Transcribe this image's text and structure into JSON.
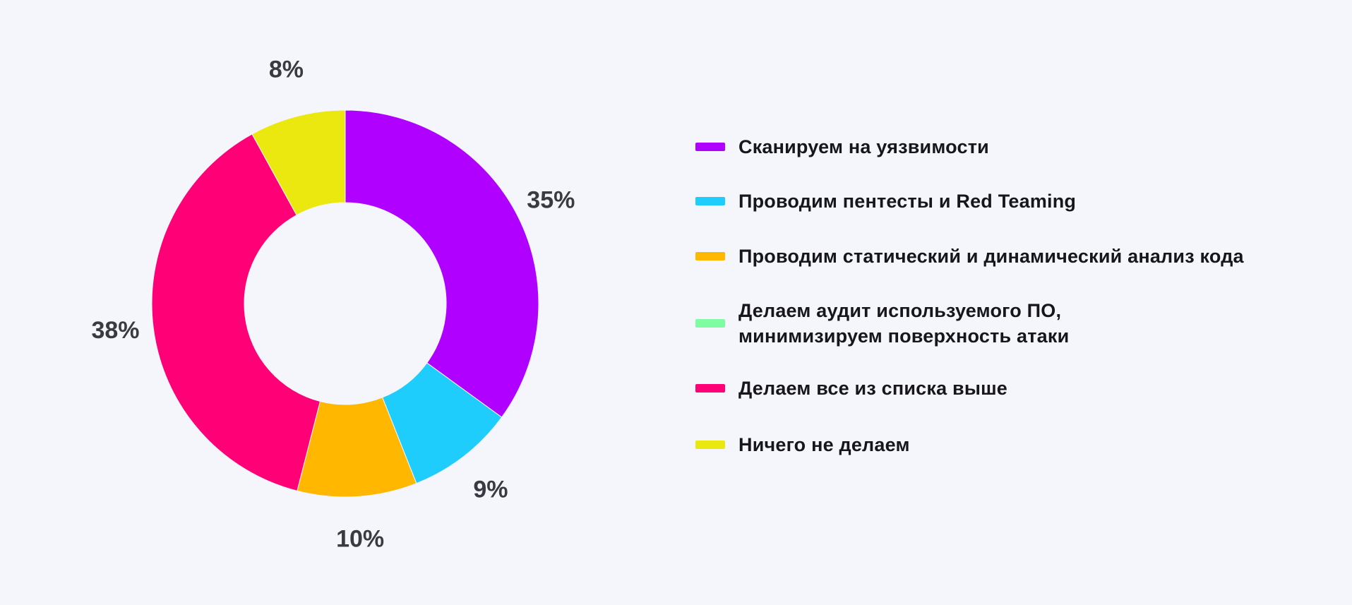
{
  "chart_data": {
    "type": "pie",
    "variant": "donut",
    "title": "",
    "slices": [
      {
        "label": "Сканируем на уязвимости",
        "value": 35,
        "value_label": "35%",
        "color": "#b000ff"
      },
      {
        "label": "Проводим пентесты и Red Teaming",
        "value": 9,
        "value_label": "9%",
        "color": "#1ecdfb"
      },
      {
        "label": "Проводим статический и динамический анализ кода",
        "value": 10,
        "value_label": "10%",
        "color": "#ffb700"
      },
      {
        "label": "Делаем аудит используемого ПО,\nминимизируем поверхность атаки",
        "value": 0,
        "value_label": "",
        "color": "#7efca2"
      },
      {
        "label": "Делаем все из списка выше",
        "value": 38,
        "value_label": "38%",
        "color": "#ff0077"
      },
      {
        "label": "Ничего не делаем",
        "value": 8,
        "value_label": "8%",
        "color": "#eae80f"
      }
    ],
    "legend_position": "right",
    "start_angle": "top",
    "direction": "clockwise"
  },
  "colors": {
    "background": "#f5f6fb",
    "label_text": "#3a3a42",
    "legend_text": "#16161c"
  }
}
